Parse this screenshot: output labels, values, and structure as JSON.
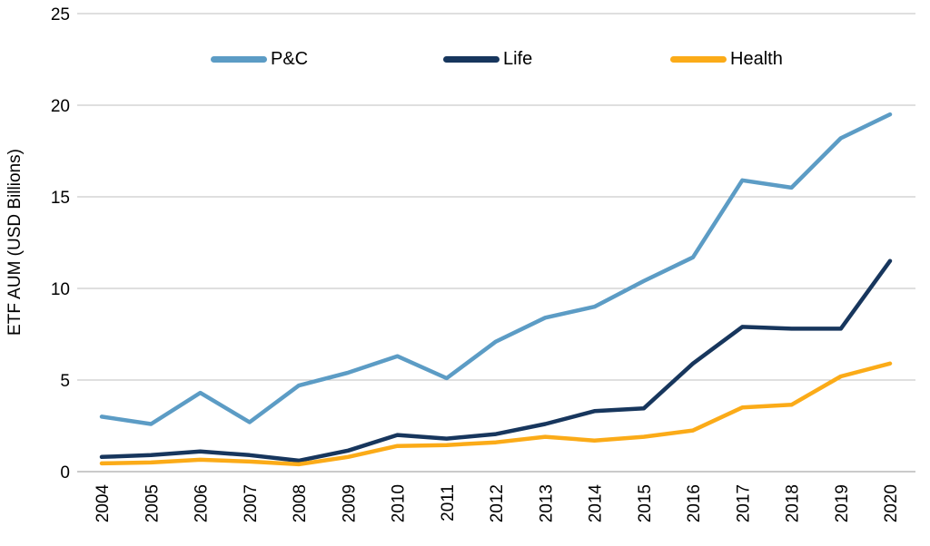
{
  "chart_data": {
    "type": "line",
    "title": "",
    "xlabel": "",
    "ylabel": "ETF AUM (USD Billions)",
    "ylim": [
      0,
      25
    ],
    "yticks": [
      0,
      5,
      10,
      15,
      20,
      25
    ],
    "grid": "horizontal",
    "legend_position": "top-inside",
    "categories": [
      "2004",
      "2005",
      "2006",
      "2007",
      "2008",
      "2009",
      "2010",
      "2011",
      "2012",
      "2013",
      "2014",
      "2015",
      "2016",
      "2017",
      "2018",
      "2019",
      "2020"
    ],
    "series": [
      {
        "name": "P&C",
        "color": "#5C9CC5",
        "values": [
          3.0,
          2.6,
          4.3,
          2.7,
          4.7,
          5.4,
          6.3,
          5.1,
          7.1,
          8.4,
          9.0,
          10.4,
          11.7,
          15.9,
          15.5,
          18.2,
          19.5
        ]
      },
      {
        "name": "Life",
        "color": "#17365D",
        "values": [
          0.8,
          0.9,
          1.1,
          0.9,
          0.6,
          1.15,
          2.0,
          1.8,
          2.05,
          2.6,
          3.3,
          3.45,
          5.9,
          7.9,
          7.8,
          7.8,
          11.5
        ]
      },
      {
        "name": "Health",
        "color": "#FBAB18",
        "values": [
          0.45,
          0.5,
          0.65,
          0.55,
          0.4,
          0.8,
          1.4,
          1.45,
          1.6,
          1.9,
          1.7,
          1.9,
          2.25,
          3.5,
          3.65,
          5.2,
          5.9
        ]
      }
    ]
  },
  "colors": {
    "gridline": "#BFBFBF",
    "axis_line": "#ABABAB",
    "tick_text": "#000000",
    "background": "#FFFFFF"
  }
}
